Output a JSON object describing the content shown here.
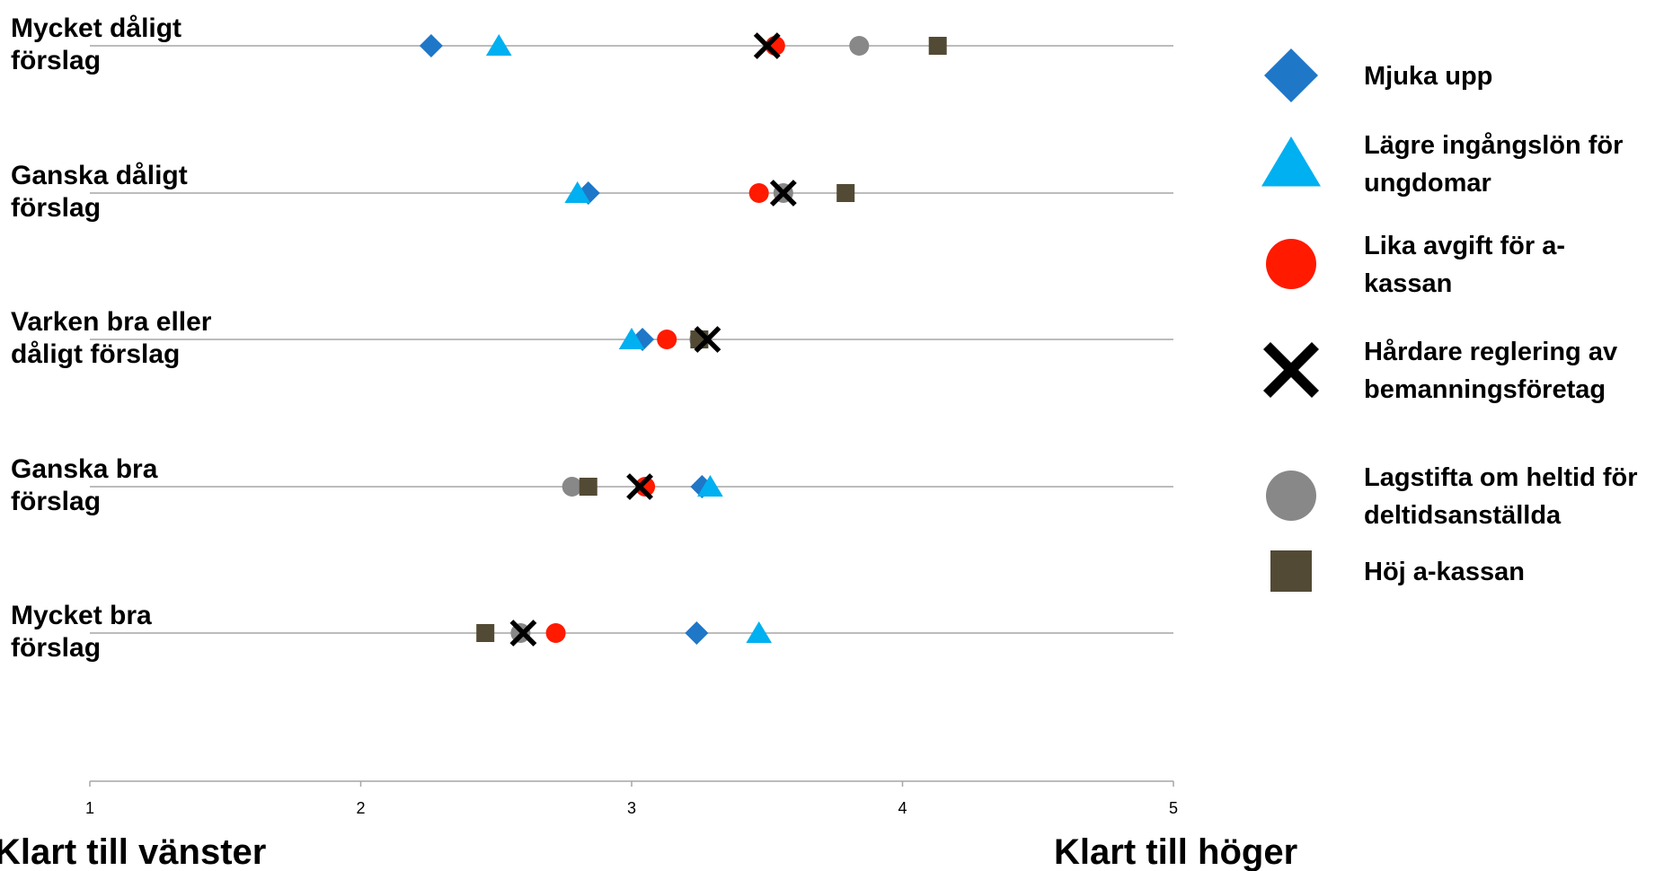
{
  "chart_data": {
    "type": "scatter",
    "orientation": "horizontal-rows",
    "categories": [
      [
        "Mycket dåligt",
        "förslag"
      ],
      [
        "Ganska dåligt",
        "förslag"
      ],
      [
        "Varken bra eller",
        "dåligt förslag"
      ],
      [
        "Ganska bra",
        "förslag"
      ],
      [
        "Mycket bra",
        "förslag"
      ]
    ],
    "xlim": [
      1,
      5
    ],
    "xticks": [
      "1",
      "2",
      "3",
      "4",
      "5"
    ],
    "left_label": "Klart till vänster",
    "right_label": "Klart till höger",
    "legend_position": "right",
    "grid": false,
    "series": [
      {
        "name": [
          "Mjuka upp"
        ],
        "marker": "diamond",
        "color": "#1f77c8",
        "values": [
          2.26,
          2.84,
          3.04,
          3.26,
          3.24
        ]
      },
      {
        "name": [
          "Lägre ingångslön för",
          "ungdomar"
        ],
        "marker": "triangle",
        "color": "#00b0f0",
        "values": [
          2.51,
          2.8,
          3.0,
          3.29,
          3.47
        ]
      },
      {
        "name": [
          "Lika avgift för a-",
          "kassan"
        ],
        "marker": "circle",
        "color": "#ff1a00",
        "values": [
          3.53,
          3.47,
          3.13,
          3.05,
          2.72
        ]
      },
      {
        "name": [
          "Lagstifta om heltid för",
          "deltidsanställda"
        ],
        "marker": "circle",
        "color": "#888888",
        "values": [
          3.84,
          3.56,
          3.25,
          2.78,
          2.59
        ]
      },
      {
        "name": [
          "Höj a-kassan"
        ],
        "marker": "square",
        "color": "#524a35",
        "values": [
          4.13,
          3.79,
          3.25,
          2.84,
          2.46
        ]
      },
      {
        "name": [
          "Hårdare reglering  av",
          "bemanningsföretag"
        ],
        "marker": "x",
        "color": "#000000",
        "values": [
          3.5,
          3.56,
          3.28,
          3.03,
          2.6
        ]
      }
    ],
    "legend_order": [
      0,
      1,
      2,
      5,
      3,
      4
    ]
  }
}
